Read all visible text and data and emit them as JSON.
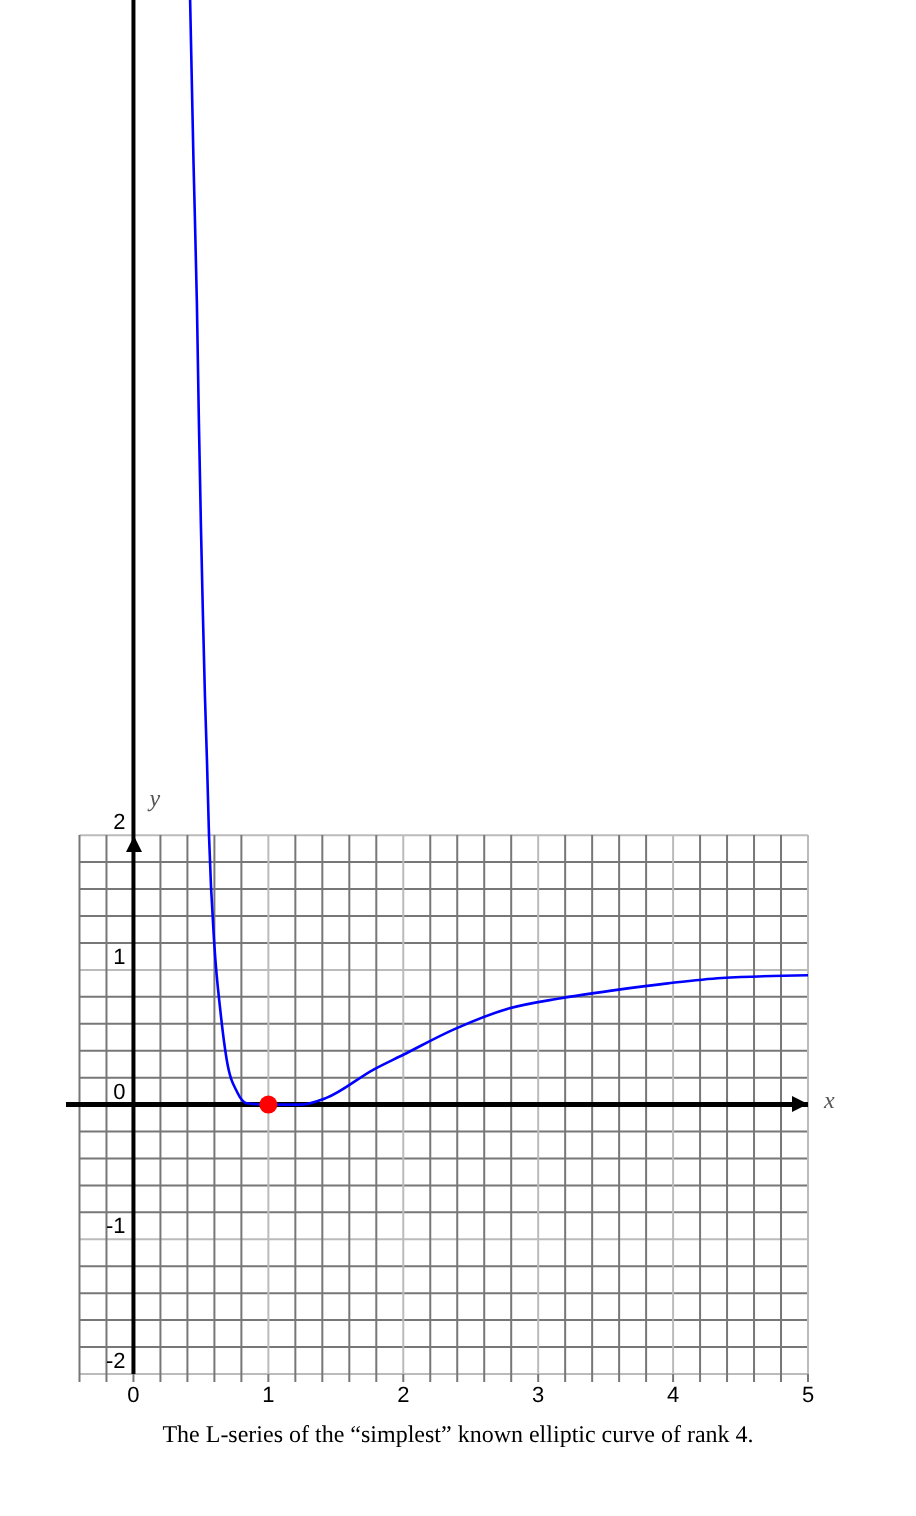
{
  "chart_data": {
    "type": "line",
    "xlabel": "x",
    "ylabel": "y",
    "annotations": [
      "The L-series of the “simplest” known elliptic curve of rank 4."
    ],
    "xlim": [
      -0.5,
      5
    ],
    "ylim": [
      -2,
      8.2
    ],
    "xticks": [
      {
        "value": -0.4,
        "label": null
      },
      {
        "value": -0.2,
        "label": null
      },
      0,
      {
        "value": 0.2,
        "label": null
      },
      {
        "value": 0.4,
        "label": null
      },
      {
        "value": 0.6,
        "label": null
      },
      {
        "value": 0.8,
        "label": null
      },
      1,
      {
        "value": 1.2,
        "label": null
      },
      {
        "value": 1.4,
        "label": null
      },
      {
        "value": 1.6,
        "label": null
      },
      {
        "value": 1.8,
        "label": null
      },
      2,
      {
        "value": 2.2,
        "label": null
      },
      {
        "value": 2.4,
        "label": null
      },
      {
        "value": 2.6,
        "label": null
      },
      {
        "value": 2.8,
        "label": null
      },
      3,
      {
        "value": 3.2,
        "label": null
      },
      {
        "value": 3.4,
        "label": null
      },
      {
        "value": 3.6,
        "label": null
      },
      {
        "value": 3.8,
        "label": null
      },
      4,
      {
        "value": 4.2,
        "label": null
      },
      {
        "value": 4.4,
        "label": null
      },
      {
        "value": 4.6,
        "label": null
      },
      {
        "value": 4.8,
        "label": null
      },
      5
    ],
    "yticks": [
      -2,
      {
        "value": -1.8,
        "label": null
      },
      {
        "value": -1.6,
        "label": null
      },
      {
        "value": -1.4,
        "label": null
      },
      {
        "value": -1.2,
        "label": null
      },
      -1,
      {
        "value": -0.8,
        "label": null
      },
      {
        "value": -0.6,
        "label": null
      },
      {
        "value": -0.4,
        "label": null
      },
      {
        "value": -0.2,
        "label": null
      },
      0,
      {
        "value": 0.2,
        "label": null
      },
      {
        "value": 0.4,
        "label": null
      },
      {
        "value": 0.6,
        "label": null
      },
      {
        "value": 0.8,
        "label": null
      },
      1,
      {
        "value": 1.2,
        "label": null
      },
      {
        "value": 1.4,
        "label": null
      },
      {
        "value": 1.6,
        "label": null
      },
      {
        "value": 1.8,
        "label": null
      },
      2
    ],
    "grid": true,
    "series": [
      {
        "color": "#0000ff",
        "marker": "none",
        "x": [
          0.42,
          0.445,
          0.47,
          0.485,
          0.5,
          0.515,
          0.53,
          0.545,
          0.56,
          0.6,
          0.645,
          0.69,
          0.77,
          0.84,
          1,
          1.24,
          1.43,
          1.78,
          2.0,
          2.38,
          2.77,
          3.17,
          3.57,
          3.96,
          4.36,
          5
        ],
        "values": [
          8.2,
          7.0,
          5.96,
          5.07,
          4.3,
          3.63,
          3.03,
          2.55,
          2.0,
          1.18,
          0.69,
          0.34,
          0.09,
          0.01,
          0,
          0,
          0.05,
          0.26,
          0.37,
          0.56,
          0.71,
          0.79,
          0.85,
          0.9,
          0.94,
          0.96
        ]
      },
      {
        "type": "scatter",
        "color": "#ff0000",
        "marker": "circle",
        "x": [
          1
        ],
        "values": [
          0
        ]
      }
    ]
  }
}
